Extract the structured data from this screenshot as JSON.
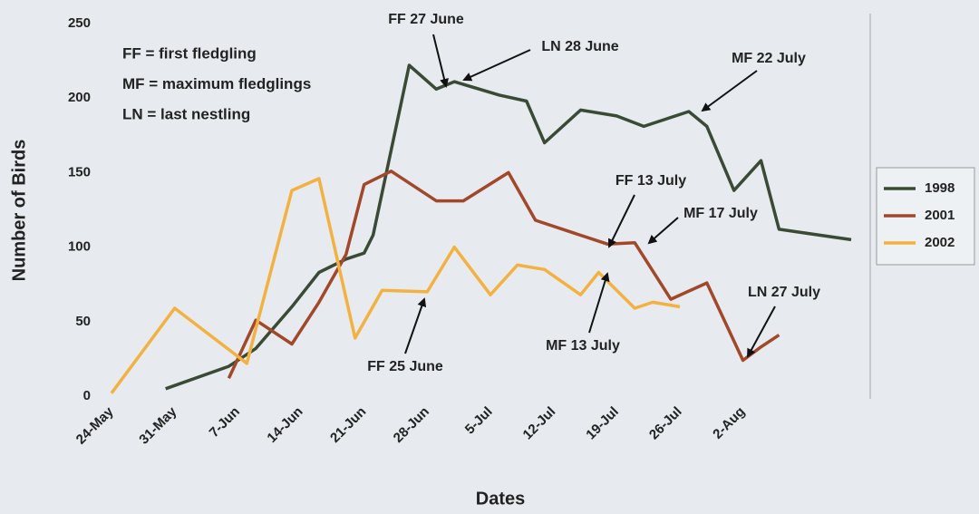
{
  "chart_data": {
    "type": "line",
    "x_label": "Dates",
    "y_label": "Number of Birds",
    "xlim": [
      "24-May",
      "15-Aug"
    ],
    "xticks": [
      "24-May",
      "31-May",
      "7-Jun",
      "14-Jun",
      "21-Jun",
      "28-Jun",
      "5-Jul",
      "12-Jul",
      "19-Jul",
      "26-Jul",
      "2-Aug"
    ],
    "ylim": [
      0,
      250
    ],
    "yticks": [
      0,
      50,
      100,
      150,
      200,
      250
    ],
    "legend": "right",
    "series": [
      {
        "name": "1998",
        "color": "#3b4a35",
        "x": [
          "30-May",
          "6-Jun",
          "9-Jun",
          "13-Jun",
          "16-Jun",
          "19-Jun",
          "21-Jun",
          "22-Jun",
          "26-Jun",
          "29-Jun",
          "1-Jul",
          "6-Jul",
          "9-Jul",
          "11-Jul",
          "15-Jul",
          "19-Jul",
          "22-Jul",
          "27-Jul",
          "29-Jul",
          "1-Aug",
          "4-Aug",
          "6-Aug",
          "14-Aug"
        ],
        "values": [
          5,
          20,
          32,
          60,
          83,
          92,
          96,
          108,
          222,
          206,
          211,
          202,
          198,
          170,
          192,
          188,
          181,
          191,
          181,
          138,
          158,
          112,
          105
        ]
      },
      {
        "name": "2001",
        "color": "#a2482a",
        "x": [
          "6-Jun",
          "9-Jun",
          "13-Jun",
          "16-Jun",
          "19-Jun",
          "21-Jun",
          "24-Jun",
          "29-Jun",
          "2-Jul",
          "7-Jul",
          "10-Jul",
          "14-Jul",
          "18-Jul",
          "21-Jul",
          "25-Jul",
          "29-Jul",
          "2-Aug",
          "4-Aug",
          "6-Aug"
        ],
        "values": [
          12,
          51,
          35,
          63,
          95,
          142,
          151,
          131,
          131,
          150,
          118,
          110,
          102,
          103,
          65,
          76,
          24,
          33,
          41
        ]
      },
      {
        "name": "2002",
        "color": "#f2b141",
        "x": [
          "24-May",
          "31-May",
          "8-Jun",
          "13-Jun",
          "16-Jun",
          "20-Jun",
          "23-Jun",
          "28-Jun",
          "1-Jul",
          "5-Jul",
          "8-Jul",
          "11-Jul",
          "15-Jul",
          "17-Jul",
          "21-Jul",
          "23-Jul",
          "26-Jul"
        ],
        "values": [
          2,
          59,
          22,
          138,
          146,
          39,
          71,
          70,
          100,
          68,
          88,
          85,
          68,
          83,
          59,
          63,
          60
        ]
      }
    ],
    "key": [
      "FF = first fledgling",
      "MF = maximum fledglings",
      "LN = last nestling"
    ],
    "annotations": [
      "FF 27 June",
      "LN 28 June",
      "MF 22 July",
      "FF 13 July",
      "MF 17 July",
      "LN 27 July",
      "FF 25 June",
      "MF 13 July"
    ]
  }
}
